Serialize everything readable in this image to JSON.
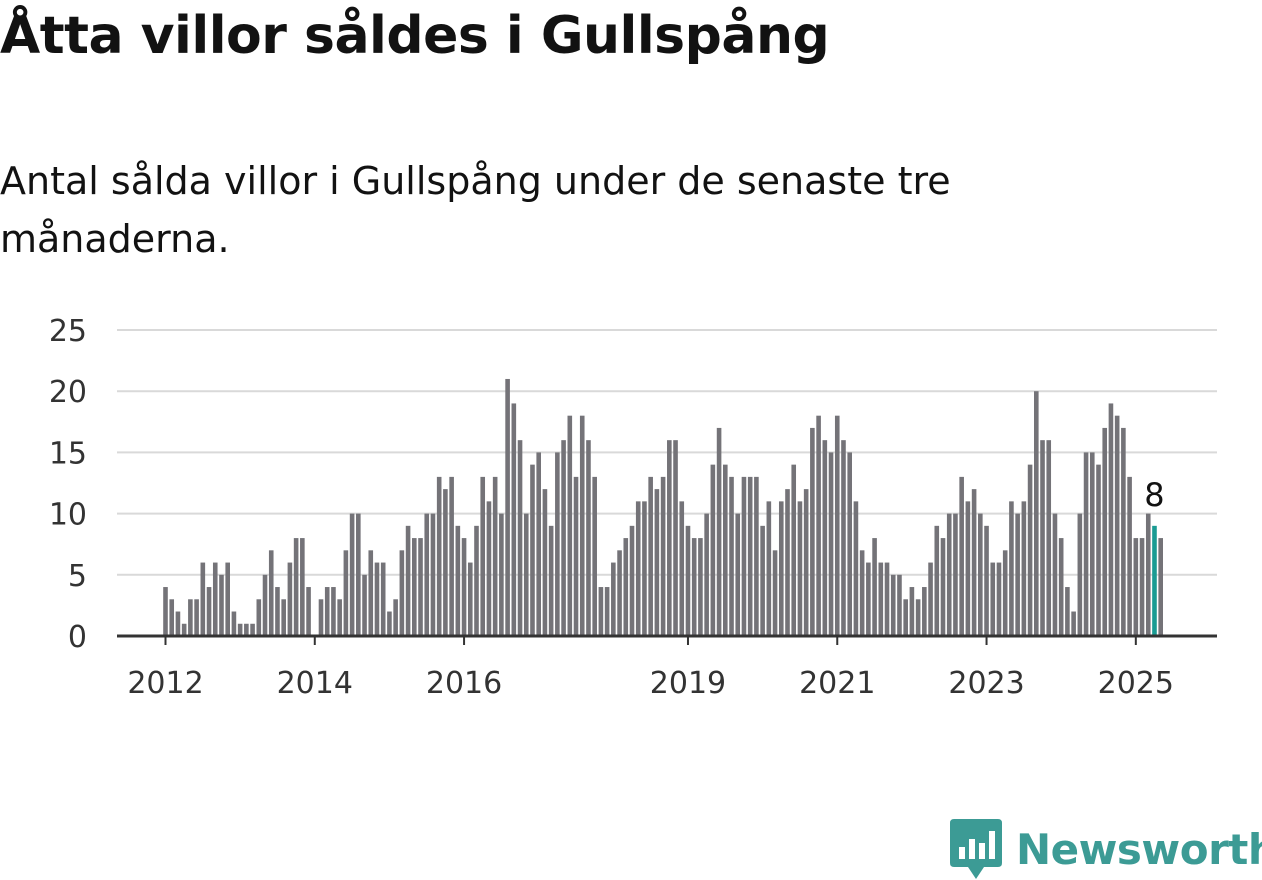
{
  "title": "Åtta villor såldes i Gullspång",
  "subtitle": "Antal sålda villor i Gullspång under de senaste tre månaderna.",
  "brand": {
    "name": "Newsworthy",
    "logo_icon": "bar-chart-bubble-icon",
    "color": "#3c9b95"
  },
  "colors": {
    "bar": "#747378",
    "highlight": "#1a9b93",
    "grid": "#d9d9d9",
    "axis": "#333333"
  },
  "chart_data": {
    "type": "bar",
    "x_start": "2012-01",
    "x_unit": "month",
    "values": [
      4,
      3,
      2,
      1,
      3,
      3,
      6,
      4,
      6,
      5,
      6,
      2,
      1,
      1,
      1,
      3,
      5,
      7,
      4,
      3,
      6,
      8,
      8,
      4,
      0,
      3,
      4,
      4,
      3,
      7,
      10,
      10,
      5,
      7,
      6,
      6,
      2,
      3,
      7,
      9,
      8,
      8,
      10,
      10,
      13,
      12,
      13,
      9,
      8,
      6,
      9,
      13,
      11,
      13,
      10,
      21,
      19,
      16,
      10,
      14,
      15,
      12,
      9,
      15,
      16,
      18,
      13,
      18,
      16,
      13,
      4,
      4,
      6,
      7,
      8,
      9,
      11,
      11,
      13,
      12,
      13,
      16,
      16,
      11,
      9,
      8,
      8,
      10,
      14,
      17,
      14,
      13,
      10,
      13,
      13,
      13,
      9,
      11,
      7,
      11,
      12,
      14,
      11,
      12,
      17,
      18,
      16,
      15,
      18,
      16,
      15,
      11,
      7,
      6,
      8,
      6,
      6,
      5,
      5,
      3,
      4,
      3,
      4,
      6,
      9,
      8,
      10,
      10,
      13,
      11,
      12,
      10,
      9,
      6,
      6,
      7,
      11,
      10,
      11,
      14,
      20,
      16,
      16,
      10,
      8,
      4,
      2,
      10,
      15,
      15,
      14,
      17,
      19,
      18,
      17,
      13,
      8,
      8,
      10,
      9,
      8
    ],
    "highlight_index": 159,
    "highlight_label": "8",
    "x_ticks": [
      "2012",
      "2014",
      "2016",
      "2019",
      "2021",
      "2023",
      "2025"
    ],
    "y_ticks": [
      "0",
      "5",
      "10",
      "15",
      "20",
      "25"
    ],
    "ylim": [
      0,
      25
    ],
    "grid": true,
    "legend": "none"
  }
}
